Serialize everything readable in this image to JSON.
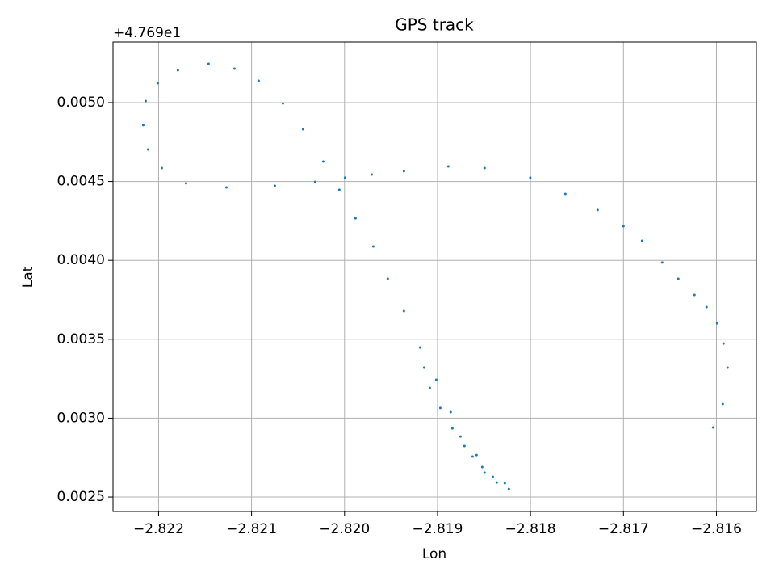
{
  "chart_data": {
    "type": "scatter",
    "title": "GPS track",
    "x_label": "Lon",
    "y_label": "Lat",
    "y_offset_text": "+4.769e1",
    "grid": true,
    "xlim": [
      -2.82249,
      -2.81557
    ],
    "ylim": [
      0.002408,
      0.005384
    ],
    "xticks": [
      {
        "value": -2.822,
        "label": "−2.822"
      },
      {
        "value": -2.821,
        "label": "−2.821"
      },
      {
        "value": -2.82,
        "label": "−2.820"
      },
      {
        "value": -2.819,
        "label": "−2.819"
      },
      {
        "value": -2.818,
        "label": "−2.818"
      },
      {
        "value": -2.817,
        "label": "−2.817"
      },
      {
        "value": -2.816,
        "label": "−2.816"
      }
    ],
    "yticks": [
      0.0025,
      {
        "value": 0.003,
        "label": "0.0030"
      },
      0.0035,
      {
        "value": 0.004,
        "label": "0.0040"
      },
      0.0045,
      {
        "value": 0.005,
        "label": "0.0050"
      }
    ],
    "series": [
      {
        "color": "#1f77b4",
        "x": [
          -2.816036,
          -2.815932,
          -2.81588,
          -2.815924,
          -2.815993,
          -2.816106,
          -2.816236,
          -2.81641,
          -2.816583,
          -2.8168,
          -2.817,
          -2.817278,
          -2.817625,
          -2.818002,
          -2.818493,
          -2.818884,
          -2.819361,
          -2.819708,
          -2.819995,
          -2.820316,
          -2.82075,
          -2.821271,
          -2.821705,
          -2.821965,
          -2.822113,
          -2.822165,
          -2.822139,
          -2.822009,
          -2.821792,
          -2.821462,
          -2.821184,
          -2.820924,
          -2.820663,
          -2.820446,
          -2.820229,
          -2.820056,
          -2.819882,
          -2.819691,
          -2.819535,
          -2.819361,
          -2.819188,
          -2.819014,
          -2.818858,
          -2.818753,
          -2.818623,
          -2.818493,
          -2.818363,
          -2.818233,
          -2.818276,
          -2.818406,
          -2.818519,
          -2.81858,
          -2.81871,
          -2.81884,
          -2.81897,
          -2.819083,
          -2.819144
        ],
        "values": [
          0.002941,
          0.003089,
          0.00332,
          0.003473,
          0.003601,
          0.003704,
          0.003781,
          0.003883,
          0.003986,
          0.004124,
          0.004216,
          0.004319,
          0.004421,
          0.004524,
          0.004585,
          0.004595,
          0.004565,
          0.004544,
          0.004524,
          0.004498,
          0.004472,
          0.004462,
          0.004488,
          0.004585,
          0.004703,
          0.004857,
          0.00501,
          0.005123,
          0.005205,
          0.005246,
          0.005215,
          0.005138,
          0.004995,
          0.004831,
          0.004626,
          0.004447,
          0.004267,
          0.004088,
          0.003883,
          0.003678,
          0.003448,
          0.003243,
          0.003038,
          0.002884,
          0.002756,
          0.002654,
          0.002592,
          0.002551,
          0.002587,
          0.002628,
          0.00269,
          0.002766,
          0.002823,
          0.002935,
          0.003064,
          0.003192,
          0.00332
        ]
      }
    ]
  }
}
